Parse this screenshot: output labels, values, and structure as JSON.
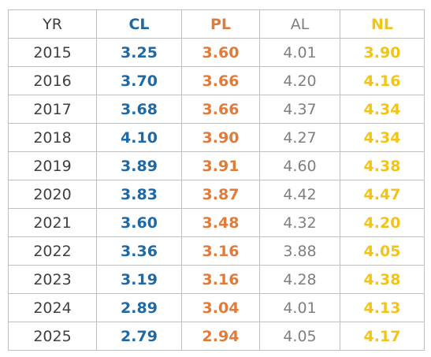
{
  "table": {
    "header": [
      "YR",
      "CL",
      "PL",
      "AL",
      "NL"
    ],
    "rows": [
      [
        "2015",
        "3.25",
        "3.60",
        "4.01",
        "3.90"
      ],
      [
        "2016",
        "3.70",
        "3.66",
        "4.20",
        "4.16"
      ],
      [
        "2017",
        "3.68",
        "3.66",
        "4.37",
        "4.34"
      ],
      [
        "2018",
        "4.10",
        "3.90",
        "4.27",
        "4.34"
      ],
      [
        "2019",
        "3.89",
        "3.91",
        "4.60",
        "4.38"
      ],
      [
        "2020",
        "3.83",
        "3.87",
        "4.42",
        "4.47"
      ],
      [
        "2021",
        "3.60",
        "3.48",
        "4.32",
        "4.20"
      ],
      [
        "2022",
        "3.36",
        "3.16",
        "3.88",
        "4.05"
      ],
      [
        "2023",
        "3.19",
        "3.16",
        "4.28",
        "4.38"
      ],
      [
        "2024",
        "2.89",
        "3.04",
        "4.01",
        "4.13"
      ],
      [
        "2025",
        "2.79",
        "2.94",
        "4.05",
        "4.17"
      ]
    ]
  }
}
